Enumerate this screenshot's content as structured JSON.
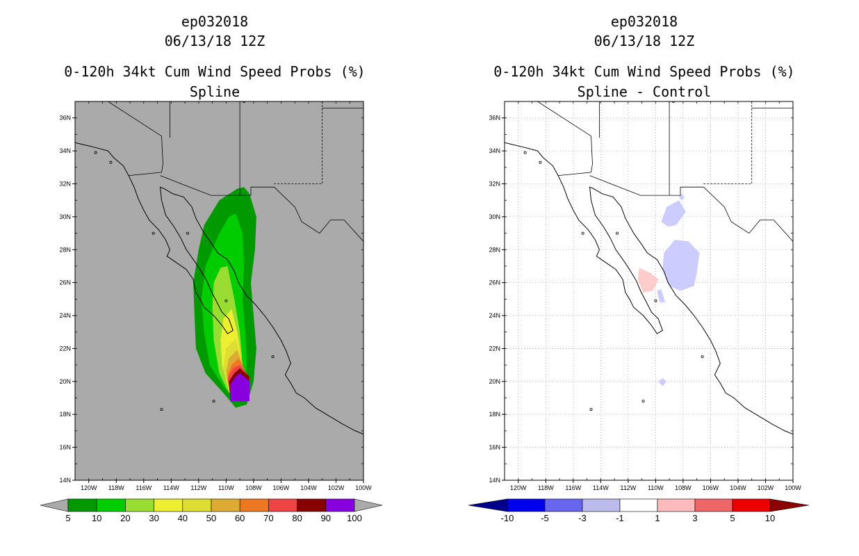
{
  "panels": [
    {
      "title_line1": "ep032018",
      "title_line2": "06/13/18 12Z",
      "title_line3": "0-120h 34kt Cum Wind Speed Probs (%)",
      "title_line4": "Spline",
      "background": "#aaaaaa"
    },
    {
      "title_line1": "ep032018",
      "title_line2": "06/13/18 12Z",
      "title_line3": "0-120h 34kt Cum Wind Speed Probs (%)",
      "title_line4": "Spline - Control",
      "background": "#ffffff"
    }
  ],
  "chart_data": [
    {
      "type": "heatmap",
      "title": "0-120h 34kt Cum Wind Speed Probs (%)",
      "subtitle": "Spline",
      "xlim": [
        -121,
        -100
      ],
      "ylim": [
        14,
        37
      ],
      "x_ticks": [
        "120W",
        "118W",
        "116W",
        "114W",
        "112W",
        "110W",
        "108W",
        "106W",
        "104W",
        "102W",
        "100W"
      ],
      "y_ticks": [
        "14N",
        "16N",
        "18N",
        "20N",
        "22N",
        "24N",
        "26N",
        "28N",
        "30N",
        "32N",
        "34N",
        "36N"
      ],
      "grid": false,
      "colorbar_levels": [
        "5",
        "10",
        "20",
        "30",
        "40",
        "50",
        "60",
        "70",
        "80",
        "90",
        "100"
      ],
      "colorbar_colors": [
        "#009900",
        "#00cc00",
        "#99dd33",
        "#eeee33",
        "#dddd33",
        "#ddaa33",
        "#ee7722",
        "#ee4444",
        "#880000",
        "#8800dd"
      ],
      "contours": [
        {
          "level": 5,
          "color": "#009900",
          "path": [
            [
              -108.7,
              31.8
            ],
            [
              -108.3,
              31.4
            ],
            [
              -107.8,
              30.0
            ],
            [
              -107.9,
              28.0
            ],
            [
              -108.2,
              26.0
            ],
            [
              -108.0,
              24.0
            ],
            [
              -107.8,
              22.0
            ],
            [
              -108.0,
              20.0
            ],
            [
              -108.5,
              18.6
            ],
            [
              -109.3,
              18.4
            ],
            [
              -110.2,
              19.3
            ],
            [
              -111.5,
              20.5
            ],
            [
              -112.2,
              22.0
            ],
            [
              -112.3,
              24.0
            ],
            [
              -112.4,
              26.0
            ],
            [
              -112.0,
              28.0
            ],
            [
              -111.6,
              29.5
            ],
            [
              -110.5,
              31.0
            ],
            [
              -109.2,
              31.7
            ]
          ]
        },
        {
          "level": 10,
          "color": "#00cc00",
          "path": [
            [
              -109.3,
              30.2
            ],
            [
              -108.8,
              29.0
            ],
            [
              -108.7,
              27.0
            ],
            [
              -108.8,
              25.0
            ],
            [
              -108.6,
              23.0
            ],
            [
              -108.5,
              21.0
            ],
            [
              -108.7,
              19.3
            ],
            [
              -109.3,
              18.9
            ],
            [
              -110.2,
              19.7
            ],
            [
              -111.2,
              21.0
            ],
            [
              -111.6,
              23.0
            ],
            [
              -111.8,
              25.0
            ],
            [
              -111.5,
              27.0
            ],
            [
              -110.6,
              28.8
            ],
            [
              -109.8,
              30.0
            ]
          ]
        },
        {
          "level": 20,
          "color": "#99dd33",
          "path": [
            [
              -109.9,
              27.0
            ],
            [
              -109.4,
              25.0
            ],
            [
              -109.0,
              23.0
            ],
            [
              -108.8,
              21.0
            ],
            [
              -109.0,
              19.5
            ],
            [
              -109.8,
              19.3
            ],
            [
              -110.5,
              20.5
            ],
            [
              -110.9,
              22.5
            ],
            [
              -111.0,
              24.5
            ],
            [
              -110.9,
              26.0
            ],
            [
              -110.4,
              26.9
            ]
          ]
        },
        {
          "level": 30,
          "color": "#eeee33",
          "path": [
            [
              -109.6,
              24.4
            ],
            [
              -109.2,
              23.0
            ],
            [
              -108.9,
              21.5
            ],
            [
              -109.0,
              19.6
            ],
            [
              -109.8,
              19.5
            ],
            [
              -110.3,
              21.0
            ],
            [
              -110.4,
              22.5
            ],
            [
              -110.2,
              23.8
            ]
          ]
        },
        {
          "level": 40,
          "color": "#dddd33",
          "path": [
            [
              -109.3,
              22.6
            ],
            [
              -108.9,
              21.5
            ],
            [
              -109.0,
              19.7
            ],
            [
              -109.8,
              19.6
            ],
            [
              -110.2,
              20.8
            ],
            [
              -110.0,
              22.0
            ]
          ]
        },
        {
          "level": 50,
          "color": "#ddaa33",
          "path": [
            [
              -109.2,
              21.9
            ],
            [
              -108.8,
              21.0
            ],
            [
              -108.9,
              19.7
            ],
            [
              -109.8,
              19.7
            ],
            [
              -110.0,
              20.6
            ],
            [
              -109.8,
              21.4
            ]
          ]
        },
        {
          "level": 60,
          "color": "#ee7722",
          "path": [
            [
              -109.1,
              21.4
            ],
            [
              -108.7,
              20.8
            ],
            [
              -108.8,
              19.6
            ],
            [
              -109.7,
              19.6
            ],
            [
              -109.9,
              20.4
            ],
            [
              -109.6,
              21.0
            ]
          ]
        },
        {
          "level": 70,
          "color": "#ee4444",
          "path": [
            [
              -109.0,
              21.0
            ],
            [
              -108.5,
              20.5
            ],
            [
              -108.6,
              19.2
            ],
            [
              -109.7,
              19.2
            ],
            [
              -109.9,
              20.2
            ],
            [
              -109.5,
              20.8
            ]
          ]
        },
        {
          "level": 80,
          "color": "#880000",
          "path": [
            [
              -109.0,
              20.8
            ],
            [
              -108.3,
              20.3
            ],
            [
              -108.4,
              19.0
            ],
            [
              -109.7,
              19.0
            ],
            [
              -109.8,
              20.0
            ],
            [
              -109.4,
              20.5
            ]
          ]
        },
        {
          "level": 90,
          "color": "#8800dd",
          "path": [
            [
              -109.0,
              20.5
            ],
            [
              -108.3,
              20.0
            ],
            [
              -108.3,
              18.8
            ],
            [
              -109.7,
              18.8
            ],
            [
              -109.7,
              19.8
            ],
            [
              -109.3,
              20.3
            ]
          ]
        }
      ]
    },
    {
      "type": "heatmap",
      "title": "0-120h 34kt Cum Wind Speed Probs (%)",
      "subtitle": "Spline - Control",
      "xlim": [
        -121,
        -100
      ],
      "ylim": [
        14,
        37
      ],
      "x_ticks": [
        "120W",
        "118W",
        "116W",
        "114W",
        "112W",
        "110W",
        "108W",
        "106W",
        "104W",
        "102W",
        "100W"
      ],
      "y_ticks": [
        "14N",
        "16N",
        "18N",
        "20N",
        "22N",
        "24N",
        "26N",
        "28N",
        "30N",
        "32N",
        "34N",
        "36N"
      ],
      "grid": true,
      "colorbar_levels": [
        "-10",
        "-5",
        "-3",
        "-1",
        "1",
        "3",
        "5",
        "10"
      ],
      "colorbar_colors": [
        "#00008b",
        "#0000ee",
        "#6666ee",
        "#bbbbee",
        "#ffffff",
        "#ffbbbb",
        "#ee6666",
        "#ee0000",
        "#8b0000"
      ],
      "contours": [
        {
          "level": -1,
          "color": "#ccccff",
          "path": [
            [
              -108.5,
              29.5
            ],
            [
              -107.8,
              30.3
            ],
            [
              -108.3,
              31.0
            ],
            [
              -109.2,
              30.6
            ],
            [
              -109.6,
              29.7
            ],
            [
              -109.1,
              29.4
            ]
          ]
        },
        {
          "level": -1,
          "color": "#ccccff",
          "path": [
            [
              -108.6,
              28.6
            ],
            [
              -107.6,
              28.5
            ],
            [
              -106.8,
              27.8
            ],
            [
              -107.0,
              26.6
            ],
            [
              -107.2,
              25.8
            ],
            [
              -108.2,
              25.5
            ],
            [
              -109.0,
              25.8
            ],
            [
              -109.5,
              26.8
            ],
            [
              -109.4,
              27.8
            ]
          ]
        },
        {
          "level": -1,
          "color": "#ccccff",
          "path": [
            [
              -109.6,
              25.6
            ],
            [
              -109.3,
              24.8
            ],
            [
              -109.7,
              24.8
            ],
            [
              -109.9,
              25.5
            ]
          ]
        },
        {
          "level": -1,
          "color": "#ccccff",
          "path": [
            [
              -108.1,
              31.4
            ],
            [
              -107.9,
              31.2
            ],
            [
              -108.1,
              31.0
            ],
            [
              -108.3,
              31.2
            ]
          ]
        },
        {
          "level": -1,
          "color": "#ccccff",
          "path": [
            [
              -109.5,
              20.2
            ],
            [
              -109.2,
              20.0
            ],
            [
              -109.5,
              19.7
            ],
            [
              -109.8,
              20.0
            ]
          ]
        },
        {
          "level": 1,
          "color": "#ffcccc",
          "path": [
            [
              -111.2,
              26.9
            ],
            [
              -110.4,
              26.6
            ],
            [
              -109.8,
              26.2
            ],
            [
              -110.2,
              25.5
            ],
            [
              -110.9,
              25.4
            ],
            [
              -111.3,
              26.2
            ]
          ]
        }
      ]
    }
  ]
}
